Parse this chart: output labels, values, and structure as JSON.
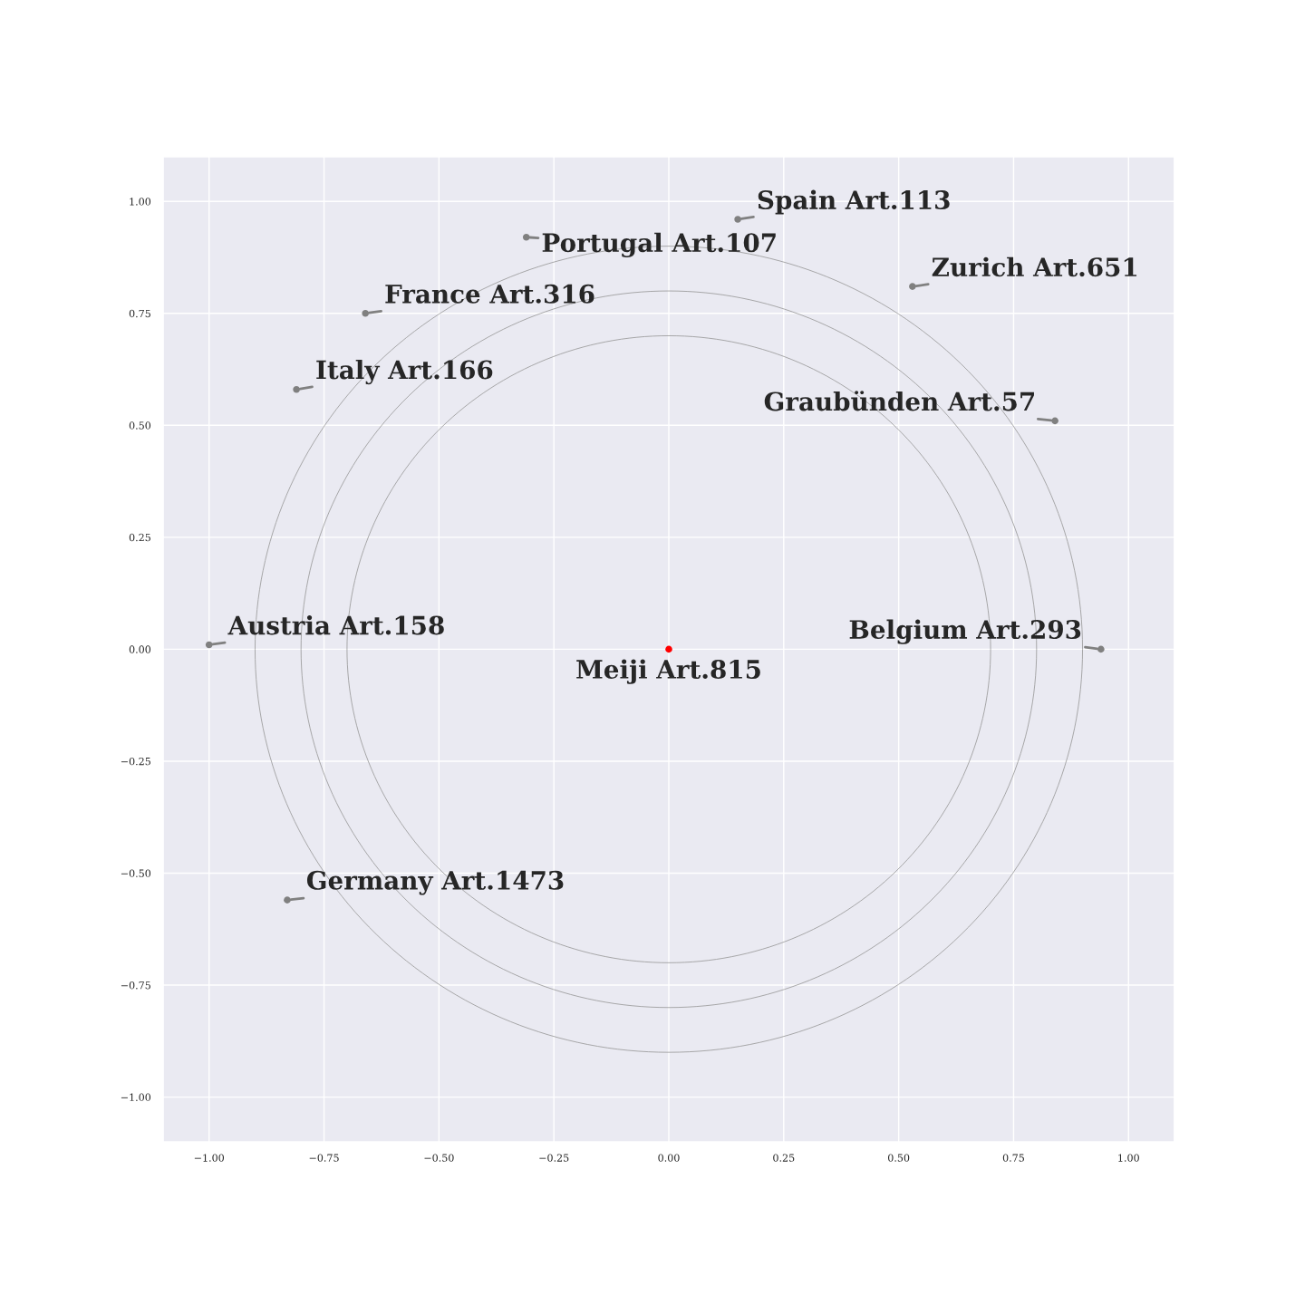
{
  "chart_data": {
    "type": "scatter",
    "xlim": [
      -1.1,
      1.1
    ],
    "ylim": [
      -1.1,
      1.1
    ],
    "xticks": [
      {
        "value": -1.0,
        "label": "−1.00"
      },
      {
        "value": -0.75,
        "label": "−0.75"
      },
      {
        "value": -0.5,
        "label": "−0.50"
      },
      {
        "value": -0.25,
        "label": "−0.25"
      },
      {
        "value": 0,
        "label": "0.00"
      },
      {
        "value": 0.25,
        "label": "0.25"
      },
      {
        "value": 0.5,
        "label": "0.50"
      },
      {
        "value": 0.75,
        "label": "0.75"
      },
      {
        "value": 1.0,
        "label": "1.00"
      }
    ],
    "yticks": [
      {
        "value": -1.0,
        "label": "−1.00"
      },
      {
        "value": -0.75,
        "label": "−0.75"
      },
      {
        "value": -0.5,
        "label": "−0.50"
      },
      {
        "value": -0.25,
        "label": "−0.25"
      },
      {
        "value": 0,
        "label": "0.00"
      },
      {
        "value": 0.25,
        "label": "0.25"
      },
      {
        "value": 0.5,
        "label": "0.50"
      },
      {
        "value": 0.75,
        "label": "0.75"
      },
      {
        "value": 1.0,
        "label": "1.00"
      }
    ],
    "grid": true,
    "marker": "circle",
    "series": [
      {
        "color": "#808080",
        "x": [
          0.15,
          -0.31,
          0.53,
          -0.66,
          -0.81,
          0.84,
          -1.0,
          0.94,
          -0.83
        ],
        "values": [
          0.96,
          0.92,
          0.81,
          0.75,
          0.58,
          0.51,
          0.01,
          0.0,
          -0.56
        ]
      },
      {
        "color": "#ff0000",
        "x": [
          0.0
        ],
        "values": [
          0.0
        ]
      }
    ],
    "annotations": [
      {
        "text": "Spain Art.113",
        "x": 0.15,
        "y": 0.96
      },
      {
        "text": "Portugal Art.107",
        "x": -0.31,
        "y": 0.92
      },
      {
        "text": "Zurich Art.651",
        "x": 0.53,
        "y": 0.81
      },
      {
        "text": "France Art.316",
        "x": -0.66,
        "y": 0.75
      },
      {
        "text": "Italy Art.166",
        "x": -0.81,
        "y": 0.58
      },
      {
        "text": "Graubünden Art.57",
        "x": 0.84,
        "y": 0.51
      },
      {
        "text": "Austria Art.158",
        "x": -1.0,
        "y": 0.01
      },
      {
        "text": "Belgium Art.293",
        "x": 0.94,
        "y": 0.0
      },
      {
        "text": "Germany Art.1473",
        "x": -0.83,
        "y": -0.56
      },
      {
        "text": "Meiji Art.815",
        "x": 0.0,
        "y": 0.0
      }
    ]
  }
}
